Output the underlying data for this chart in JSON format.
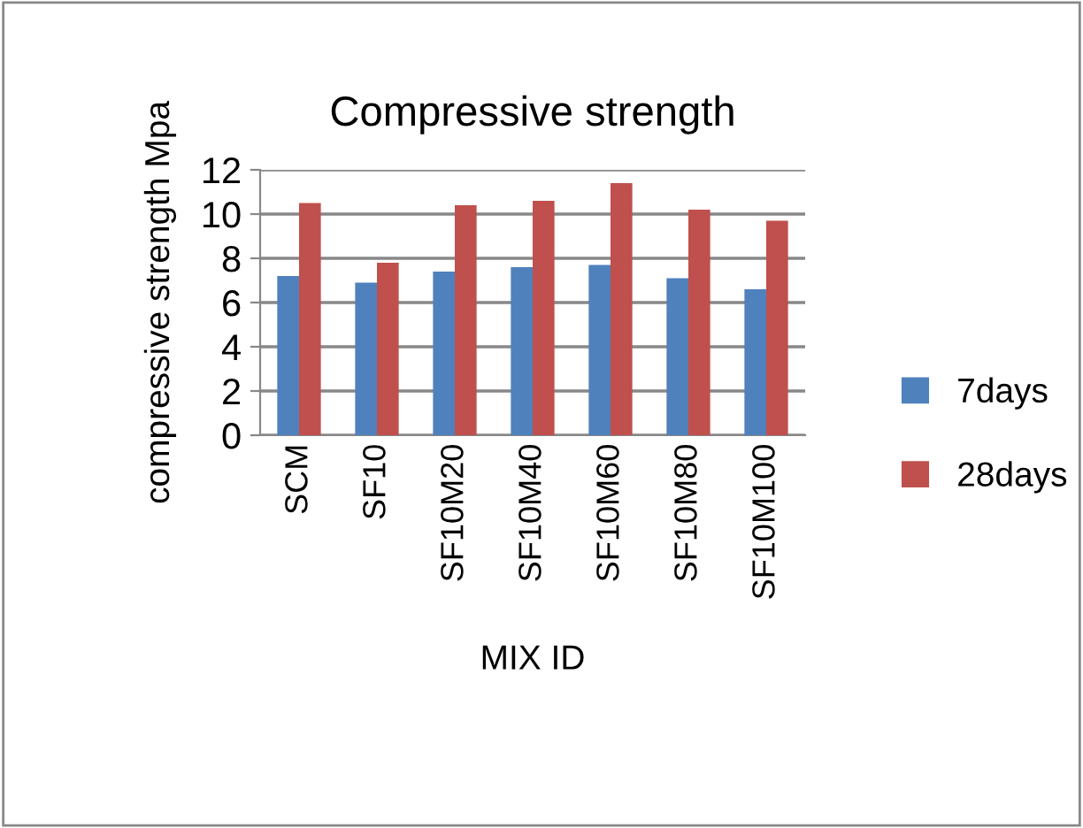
{
  "chart_data": {
    "type": "bar",
    "title": "Compressive strength",
    "xlabel": "MIX ID",
    "ylabel": "compressive strength Mpa",
    "categories": [
      "SCM",
      "SF10",
      "SF10M20",
      "SF10M40",
      "SF10M60",
      "SF10M80",
      "SF10M100"
    ],
    "series": [
      {
        "name": "7days",
        "color": "#4f81bd",
        "values": [
          7.2,
          6.9,
          7.4,
          7.6,
          7.7,
          7.1,
          6.6
        ]
      },
      {
        "name": "28days",
        "color": "#c0504d",
        "values": [
          10.5,
          7.8,
          10.4,
          10.6,
          11.4,
          10.2,
          9.7
        ]
      }
    ],
    "ylim": [
      0,
      12
    ],
    "yticks": [
      0,
      2,
      4,
      6,
      8,
      10,
      12
    ],
    "grid": "y",
    "legend": "right"
  }
}
